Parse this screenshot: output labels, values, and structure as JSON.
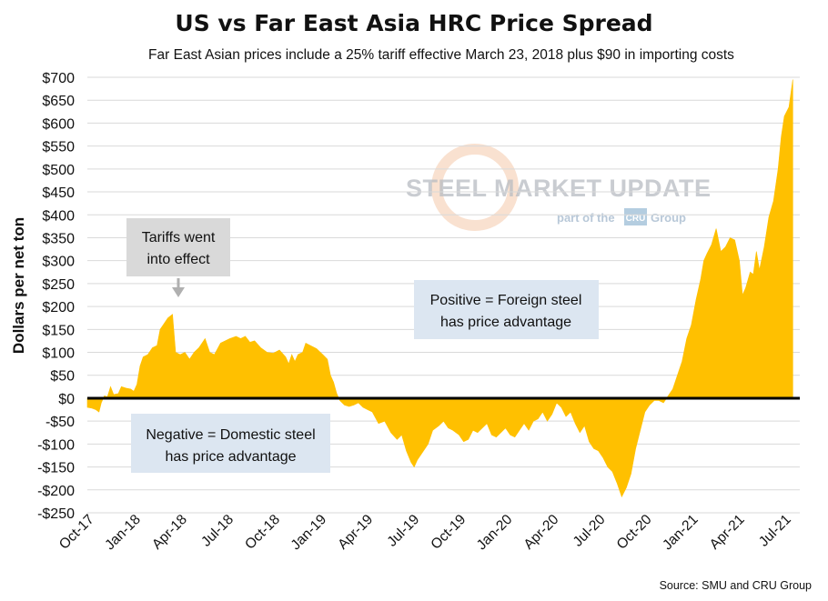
{
  "chart_data": {
    "type": "area",
    "title": "US vs Far East Asia HRC Price Spread",
    "subtitle": "Far East Asian prices include a 25% tariff effective March 23, 2018 plus $90 in importing costs",
    "ylabel": "Dollars per net ton",
    "xlabel": "",
    "ylim": [
      -250,
      700
    ],
    "ytick_values": [
      700,
      650,
      600,
      550,
      500,
      450,
      400,
      350,
      300,
      250,
      200,
      150,
      100,
      50,
      0,
      -50,
      -100,
      -150,
      -200,
      -250
    ],
    "ytick_labels": [
      "$700",
      "$650",
      "$600",
      "$550",
      "$500",
      "$450",
      "$400",
      "$350",
      "$300",
      "$250",
      "$200",
      "$150",
      "$100",
      "$50",
      "$0",
      "-$50",
      "-$100",
      "-$150",
      "-$200",
      "-$250"
    ],
    "x_range_months": [
      0,
      46
    ],
    "x_ticks": [
      {
        "label": "Oct-17",
        "month": 0
      },
      {
        "label": "Jan-18",
        "month": 3
      },
      {
        "label": "Apr-18",
        "month": 6
      },
      {
        "label": "Jul-18",
        "month": 9
      },
      {
        "label": "Oct-18",
        "month": 12
      },
      {
        "label": "Jan-19",
        "month": 15
      },
      {
        "label": "Apr-19",
        "month": 18
      },
      {
        "label": "Jul-19",
        "month": 21
      },
      {
        "label": "Oct-19",
        "month": 24
      },
      {
        "label": "Jan-20",
        "month": 27
      },
      {
        "label": "Apr-20",
        "month": 30
      },
      {
        "label": "Jul-20",
        "month": 33
      },
      {
        "label": "Oct-20",
        "month": 36
      },
      {
        "label": "Jan-21",
        "month": 39
      },
      {
        "label": "Apr-21",
        "month": 42
      },
      {
        "label": "Jul-21",
        "month": 45
      }
    ],
    "series": [
      {
        "name": "US vs Far East Asia HRC price spread",
        "color": "#ffc000",
        "points": [
          [
            0.0,
            -20
          ],
          [
            0.3,
            -22
          ],
          [
            0.55,
            -25
          ],
          [
            0.75,
            -30
          ],
          [
            0.9,
            -10
          ],
          [
            1.1,
            5
          ],
          [
            1.3,
            3
          ],
          [
            1.5,
            25
          ],
          [
            1.7,
            8
          ],
          [
            2.0,
            10
          ],
          [
            2.2,
            25
          ],
          [
            2.5,
            22
          ],
          [
            2.8,
            20
          ],
          [
            3.0,
            15
          ],
          [
            3.2,
            30
          ],
          [
            3.4,
            70
          ],
          [
            3.6,
            90
          ],
          [
            3.9,
            95
          ],
          [
            4.2,
            110
          ],
          [
            4.5,
            115
          ],
          [
            4.7,
            150
          ],
          [
            4.9,
            160
          ],
          [
            5.2,
            175
          ],
          [
            5.5,
            183
          ],
          [
            5.7,
            100
          ],
          [
            6.0,
            95
          ],
          [
            6.3,
            100
          ],
          [
            6.6,
            85
          ],
          [
            6.9,
            100
          ],
          [
            7.2,
            110
          ],
          [
            7.6,
            130
          ],
          [
            7.9,
            100
          ],
          [
            8.2,
            95
          ],
          [
            8.6,
            120
          ],
          [
            8.9,
            125
          ],
          [
            9.2,
            130
          ],
          [
            9.6,
            135
          ],
          [
            9.9,
            130
          ],
          [
            10.2,
            135
          ],
          [
            10.5,
            122
          ],
          [
            10.8,
            125
          ],
          [
            11.2,
            110
          ],
          [
            11.6,
            100
          ],
          [
            12.0,
            98
          ],
          [
            12.4,
            105
          ],
          [
            12.8,
            90
          ],
          [
            13.0,
            75
          ],
          [
            13.2,
            95
          ],
          [
            13.4,
            80
          ],
          [
            13.6,
            95
          ],
          [
            13.9,
            100
          ],
          [
            14.1,
            120
          ],
          [
            14.4,
            115
          ],
          [
            14.8,
            108
          ],
          [
            15.2,
            95
          ],
          [
            15.5,
            85
          ],
          [
            15.7,
            50
          ],
          [
            15.9,
            35
          ],
          [
            16.1,
            10
          ],
          [
            16.3,
            -5
          ],
          [
            16.6,
            -15
          ],
          [
            16.9,
            -18
          ],
          [
            17.2,
            -15
          ],
          [
            17.5,
            -10
          ],
          [
            17.8,
            -20
          ],
          [
            18.1,
            -25
          ],
          [
            18.4,
            -30
          ],
          [
            18.8,
            -55
          ],
          [
            19.2,
            -50
          ],
          [
            19.6,
            -75
          ],
          [
            20.0,
            -90
          ],
          [
            20.3,
            -80
          ],
          [
            20.6,
            -115
          ],
          [
            20.9,
            -140
          ],
          [
            21.1,
            -150
          ],
          [
            21.3,
            -135
          ],
          [
            21.6,
            -120
          ],
          [
            22.0,
            -100
          ],
          [
            22.3,
            -70
          ],
          [
            22.7,
            -60
          ],
          [
            23.0,
            -50
          ],
          [
            23.3,
            -65
          ],
          [
            23.6,
            -70
          ],
          [
            24.0,
            -80
          ],
          [
            24.3,
            -95
          ],
          [
            24.6,
            -90
          ],
          [
            24.9,
            -70
          ],
          [
            25.2,
            -75
          ],
          [
            25.5,
            -65
          ],
          [
            25.8,
            -55
          ],
          [
            26.1,
            -80
          ],
          [
            26.4,
            -85
          ],
          [
            26.7,
            -75
          ],
          [
            27.0,
            -65
          ],
          [
            27.3,
            -80
          ],
          [
            27.6,
            -85
          ],
          [
            27.9,
            -70
          ],
          [
            28.2,
            -55
          ],
          [
            28.5,
            -70
          ],
          [
            28.8,
            -50
          ],
          [
            29.1,
            -45
          ],
          [
            29.4,
            -30
          ],
          [
            29.7,
            -50
          ],
          [
            30.0,
            -35
          ],
          [
            30.3,
            -10
          ],
          [
            30.6,
            -20
          ],
          [
            30.9,
            -40
          ],
          [
            31.2,
            -30
          ],
          [
            31.5,
            -55
          ],
          [
            31.8,
            -75
          ],
          [
            32.1,
            -60
          ],
          [
            32.4,
            -95
          ],
          [
            32.7,
            -110
          ],
          [
            33.0,
            -115
          ],
          [
            33.3,
            -130
          ],
          [
            33.6,
            -150
          ],
          [
            33.9,
            -160
          ],
          [
            34.2,
            -185
          ],
          [
            34.5,
            -215
          ],
          [
            34.8,
            -195
          ],
          [
            35.1,
            -165
          ],
          [
            35.4,
            -110
          ],
          [
            35.7,
            -70
          ],
          [
            36.0,
            -30
          ],
          [
            36.3,
            -15
          ],
          [
            36.6,
            -5
          ],
          [
            36.9,
            -5
          ],
          [
            37.2,
            -10
          ],
          [
            37.5,
            5
          ],
          [
            37.8,
            20
          ],
          [
            38.1,
            50
          ],
          [
            38.4,
            80
          ],
          [
            38.7,
            130
          ],
          [
            39.0,
            160
          ],
          [
            39.3,
            215
          ],
          [
            39.6,
            260
          ],
          [
            39.8,
            300
          ],
          [
            40.0,
            315
          ],
          [
            40.3,
            335
          ],
          [
            40.6,
            370
          ],
          [
            40.9,
            320
          ],
          [
            41.2,
            330
          ],
          [
            41.5,
            350
          ],
          [
            41.8,
            345
          ],
          [
            42.1,
            300
          ],
          [
            42.3,
            225
          ],
          [
            42.5,
            240
          ],
          [
            42.8,
            275
          ],
          [
            43.0,
            270
          ],
          [
            43.2,
            320
          ],
          [
            43.4,
            280
          ],
          [
            43.7,
            330
          ],
          [
            44.0,
            395
          ],
          [
            44.3,
            430
          ],
          [
            44.6,
            500
          ],
          [
            44.8,
            570
          ],
          [
            45.0,
            615
          ],
          [
            45.3,
            635
          ],
          [
            45.55,
            695
          ]
        ]
      }
    ],
    "annotations": [
      {
        "lines": [
          "Tariffs went",
          "into effect"
        ],
        "anchor_month": 5.5,
        "anchor_value": 225,
        "kind": "arrow-callout"
      },
      {
        "lines": [
          "Positive = Foreign steel",
          "has price advantage"
        ],
        "kind": "note"
      },
      {
        "lines": [
          "Negative = Domestic steel",
          "has price advantage"
        ],
        "kind": "note"
      }
    ],
    "watermark": {
      "brand": "STEEL MARKET UPDATE",
      "tagline": "part of the",
      "group_word": "Group",
      "badge": "CRU"
    },
    "source": "Source: SMU and CRU Group",
    "grid": true,
    "zero_line": true
  }
}
